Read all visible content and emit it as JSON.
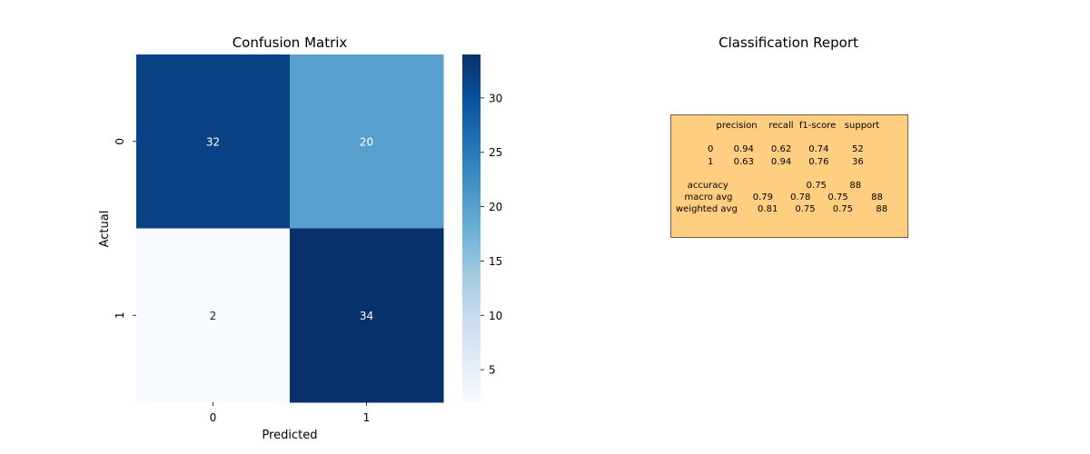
{
  "chart_data": [
    {
      "type": "heatmap",
      "title": "Confusion Matrix",
      "xlabel": "Predicted",
      "ylabel": "Actual",
      "x_categories": [
        "0",
        "1"
      ],
      "y_categories": [
        "0",
        "1"
      ],
      "values": [
        [
          32,
          20
        ],
        [
          2,
          34
        ]
      ],
      "colormap": "Blues",
      "colorbar": {
        "min": 2,
        "max": 34,
        "ticks": [
          5,
          10,
          15,
          20,
          25,
          30
        ]
      },
      "annotations": true
    },
    {
      "type": "table",
      "title": "Classification Report",
      "box_color": "#ffce80",
      "text": "              precision    recall  f1-score   support\n\n           0       0.94      0.62      0.74        52\n           1       0.63      0.94      0.76        36\n\n    accuracy                           0.75        88\n   macro avg       0.79      0.78      0.75        88\nweighted avg       0.81      0.75      0.75        88",
      "columns": [
        "precision",
        "recall",
        "f1-score",
        "support"
      ],
      "rows": [
        {
          "label": "0",
          "values": [
            "0.94",
            "0.62",
            "0.74",
            "52"
          ]
        },
        {
          "label": "1",
          "values": [
            "0.63",
            "0.94",
            "0.76",
            "36"
          ]
        },
        {
          "label": "accuracy",
          "values": [
            "",
            "",
            "0.75",
            "88"
          ]
        },
        {
          "label": "macro avg",
          "values": [
            "0.79",
            "0.78",
            "0.75",
            "88"
          ]
        },
        {
          "label": "weighted avg",
          "values": [
            "0.81",
            "0.75",
            "0.75",
            "88"
          ]
        }
      ]
    }
  ]
}
